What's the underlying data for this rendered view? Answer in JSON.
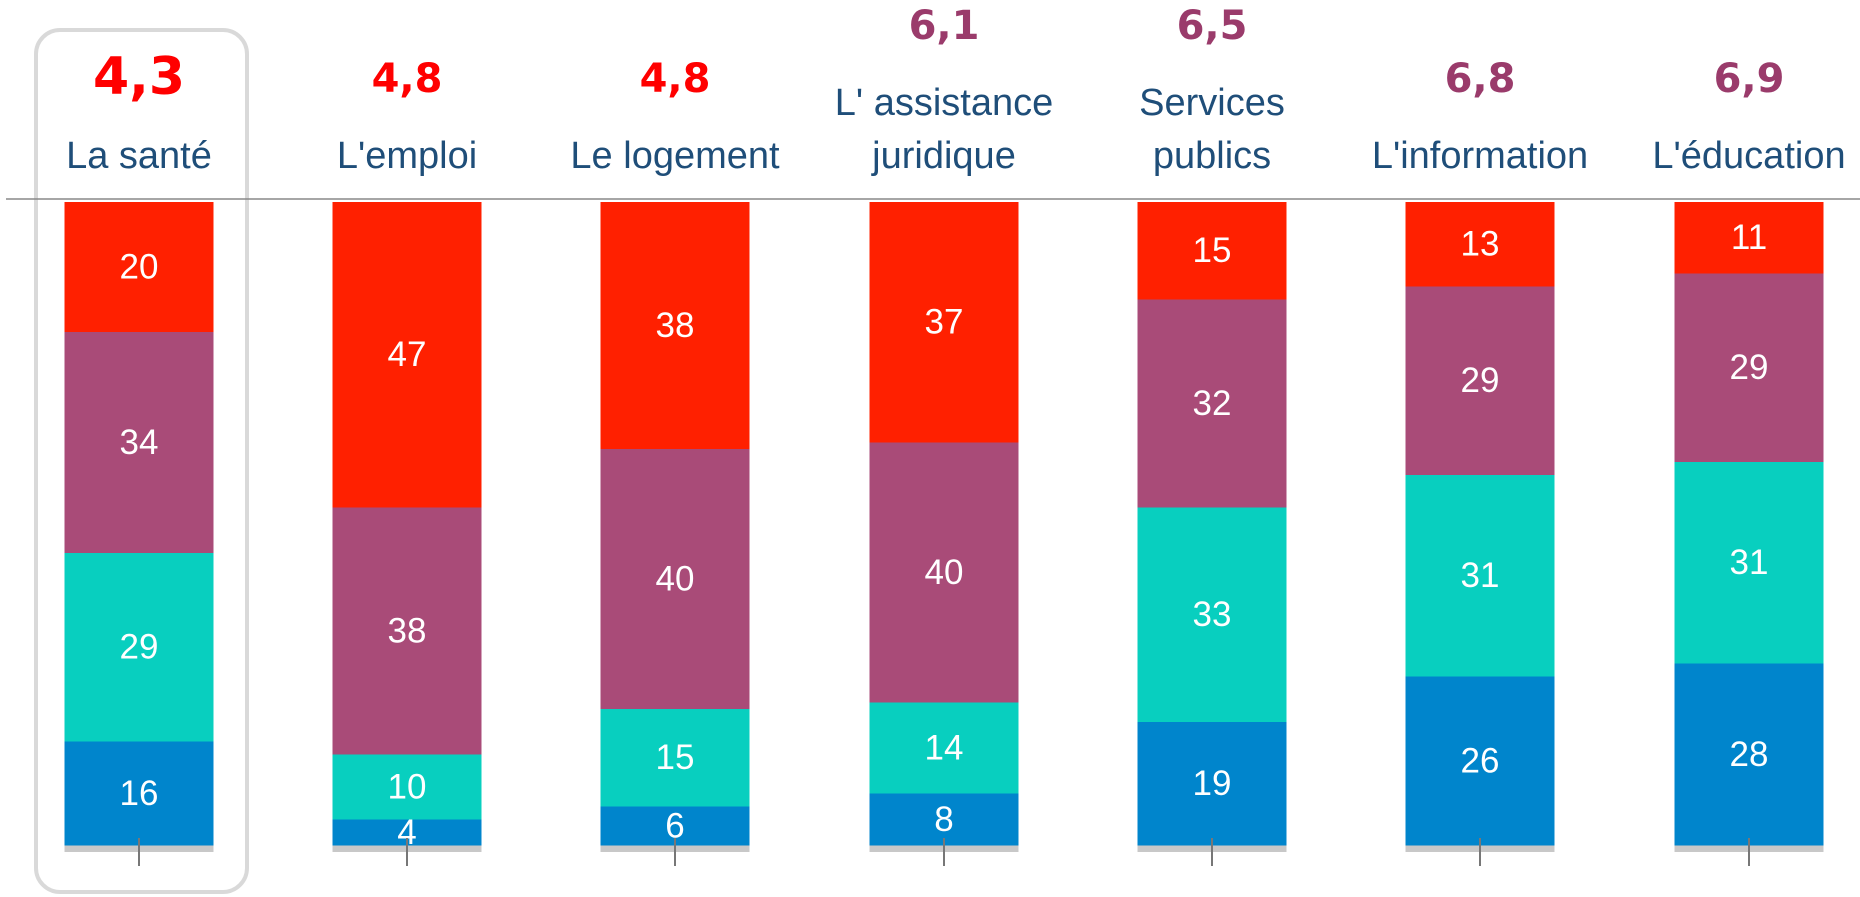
{
  "chart_data": {
    "type": "stacked_bar",
    "categories": [
      [
        "La santé"
      ],
      [
        "L'emploi"
      ],
      [
        "Le logement"
      ],
      [
        "L' assistance",
        "juridique"
      ],
      [
        "Services",
        "publics"
      ],
      [
        "L'information"
      ],
      [
        "L'éducation"
      ]
    ],
    "scores": [
      {
        "value": 4.3,
        "label": "4,3",
        "color": "#ff0000"
      },
      {
        "value": 4.8,
        "label": "4,8",
        "color": "#ff0000"
      },
      {
        "value": 4.8,
        "label": "4,8",
        "color": "#ff0000"
      },
      {
        "value": 6.1,
        "label": "6,1",
        "color": "#9a3b6b"
      },
      {
        "value": 6.5,
        "label": "6,5",
        "color": "#9a3b6b"
      },
      {
        "value": 6.8,
        "label": "6,8",
        "color": "#9a3b6b"
      },
      {
        "value": 6.9,
        "label": "6,9",
        "color": "#9a3b6b"
      }
    ],
    "series": [
      {
        "color": "#ff2000",
        "values": [
          20,
          47,
          38,
          37,
          15,
          13,
          11
        ]
      },
      {
        "color": "#a94b78",
        "values": [
          34,
          38,
          40,
          40,
          32,
          29,
          29
        ]
      },
      {
        "color": "#08cfbf",
        "values": [
          29,
          10,
          15,
          14,
          33,
          31,
          31
        ]
      },
      {
        "color": "#0085cc",
        "values": [
          16,
          4,
          6,
          8,
          19,
          26,
          28
        ]
      }
    ],
    "ylim": [
      0,
      100
    ]
  }
}
